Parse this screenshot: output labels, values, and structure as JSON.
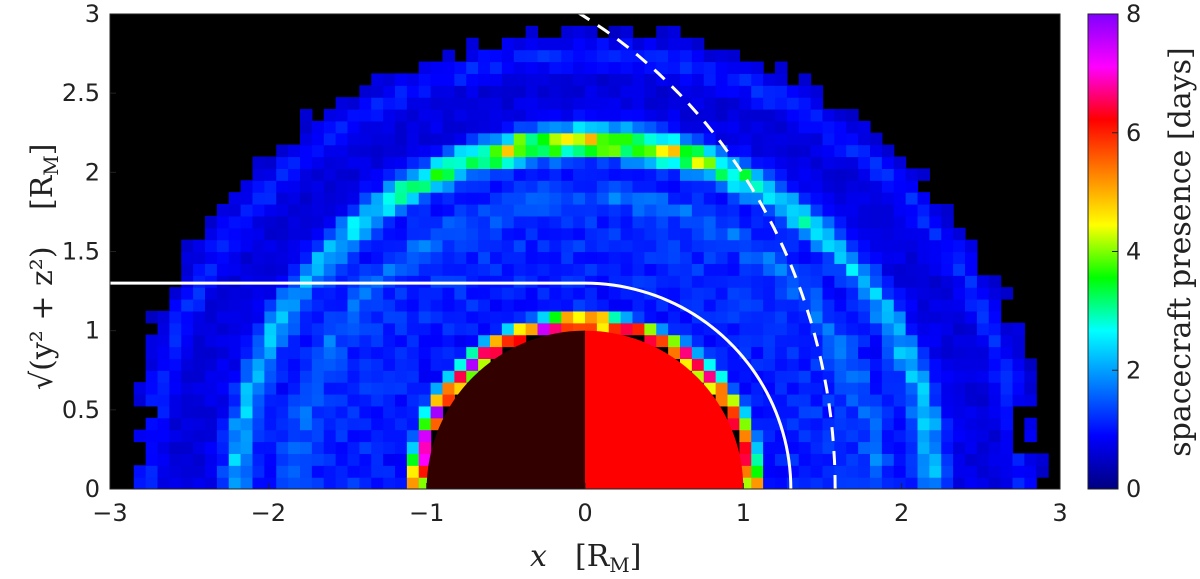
{
  "chart_data": {
    "type": "heatmap",
    "xlabel": "x",
    "xlabel_unit": "[R",
    "xlabel_unit_sub": "M",
    "xlabel_unit_close": "]",
    "ylabel": "√(y² + z²)",
    "ylabel_unit": "[R",
    "ylabel_unit_sub": "M",
    "ylabel_unit_close": "]",
    "xlim": [
      -3,
      3
    ],
    "ylim": [
      0,
      3
    ],
    "xticks": [
      -3,
      -2,
      -1,
      0,
      1,
      2,
      3
    ],
    "yticks": [
      0,
      0.5,
      1,
      1.5,
      2,
      2.5,
      3
    ],
    "x_tick_labels": [
      "−3",
      "−2",
      "−1",
      "0",
      "1",
      "2",
      "3"
    ],
    "y_tick_labels": [
      "0",
      "0.5",
      "1",
      "1.5",
      "2",
      "2.5",
      "3"
    ],
    "colorbar": {
      "label": "spacecraft presence [days]",
      "range": [
        0,
        8
      ],
      "ticks": [
        0,
        2,
        4,
        6,
        8
      ],
      "tick_labels": [
        "0",
        "2",
        "4",
        "6",
        "8"
      ],
      "colormap": [
        "#00007f",
        "#0000ff",
        "#0080ff",
        "#00ffff",
        "#00ff00",
        "#ffff00",
        "#ff8000",
        "#ff0000",
        "#ff00ff",
        "#8000ff"
      ]
    },
    "background_color": "#000000",
    "coverage_rings": [
      {
        "radius": 2.2,
        "peak_days": 5.0
      },
      {
        "radius": 1.05,
        "peak_days": 7.0
      },
      {
        "radius": 2.75,
        "peak_days": 2.0
      }
    ],
    "planet": {
      "radius": 1.0,
      "night_color": "#330000",
      "day_color": "#ff0000"
    },
    "curves": [
      {
        "name": "magnetopause",
        "style": "solid",
        "color": "#ffffff",
        "flank_height": 1.3,
        "subsolar_x": 1.3
      },
      {
        "name": "bow shock",
        "style": "dashed",
        "color": "#ffffff",
        "subsolar_x": 1.58,
        "start_x": -1.35
      }
    ]
  }
}
